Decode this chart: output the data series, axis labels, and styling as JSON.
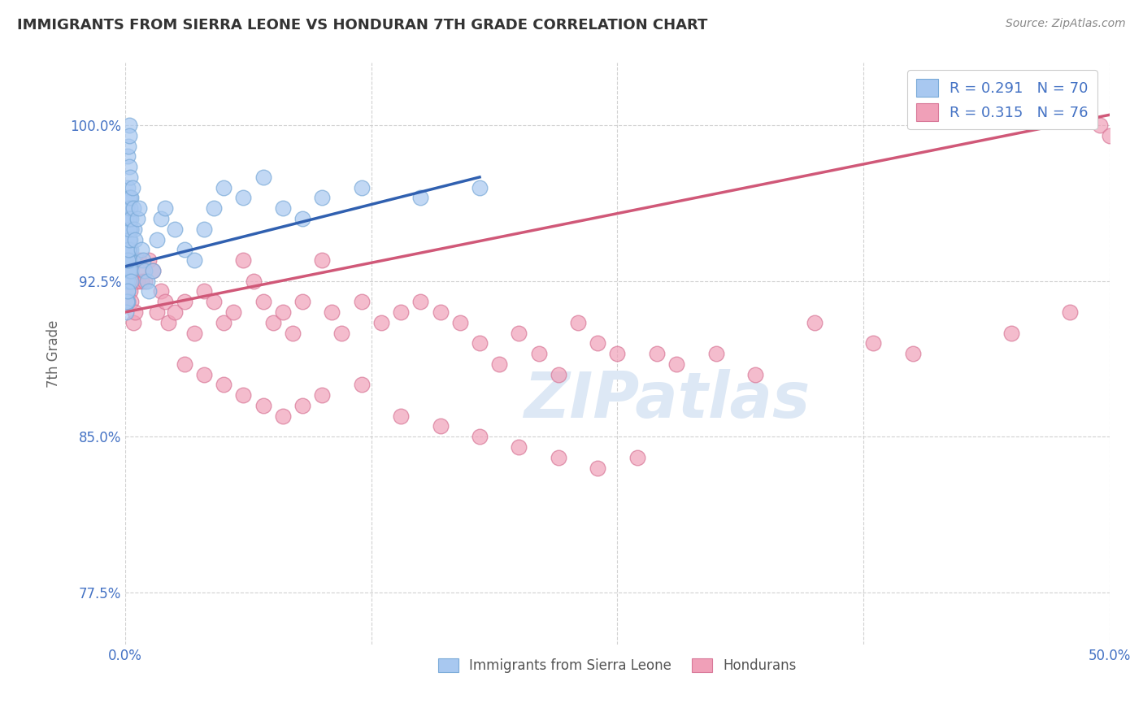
{
  "title": "IMMIGRANTS FROM SIERRA LEONE VS HONDURAN 7TH GRADE CORRELATION CHART",
  "source_text": "Source: ZipAtlas.com",
  "ylabel": "7th Grade",
  "xlim": [
    0.0,
    50.0
  ],
  "ylim": [
    75.0,
    103.0
  ],
  "yticks": [
    77.5,
    85.0,
    92.5,
    100.0
  ],
  "ytick_labels": [
    "77.5%",
    "85.0%",
    "92.5%",
    "100.0%"
  ],
  "xticks": [
    0.0,
    12.5,
    25.0,
    37.5,
    50.0
  ],
  "xtick_labels": [
    "0.0%",
    "",
    "",
    "",
    "50.0%"
  ],
  "legend_R_blue": "R = 0.291",
  "legend_N_blue": "N = 70",
  "legend_R_pink": "R = 0.315",
  "legend_N_pink": "N = 76",
  "legend_label_blue": "Immigrants from Sierra Leone",
  "legend_label_pink": "Hondurans",
  "blue_color": "#a8c8f0",
  "pink_color": "#f0a0b8",
  "blue_edge_color": "#7aaad8",
  "pink_edge_color": "#d87898",
  "blue_line_color": "#3060b0",
  "pink_line_color": "#d05878",
  "title_color": "#333333",
  "axis_label_color": "#666666",
  "tick_color": "#4472c4",
  "grid_color": "#cccccc",
  "watermark_color": "#dde8f5",
  "source_color": "#888888",
  "background_color": "#ffffff",
  "blue_scatter_x": [
    0.05,
    0.08,
    0.1,
    0.12,
    0.15,
    0.18,
    0.2,
    0.22,
    0.25,
    0.28,
    0.1,
    0.12,
    0.15,
    0.18,
    0.2,
    0.22,
    0.25,
    0.28,
    0.3,
    0.35,
    0.08,
    0.1,
    0.12,
    0.15,
    0.18,
    0.2,
    0.22,
    0.25,
    0.28,
    0.3,
    0.05,
    0.08,
    0.1,
    0.12,
    0.15,
    0.18,
    0.2,
    0.22,
    0.25,
    0.28,
    0.3,
    0.35,
    0.4,
    0.45,
    0.5,
    0.6,
    0.7,
    0.8,
    0.9,
    1.0,
    1.1,
    1.2,
    1.4,
    1.6,
    1.8,
    2.0,
    2.5,
    3.0,
    3.5,
    4.0,
    4.5,
    5.0,
    6.0,
    7.0,
    8.0,
    9.0,
    10.0,
    12.0,
    15.0,
    18.0
  ],
  "blue_scatter_y": [
    95.5,
    96.0,
    97.0,
    98.5,
    99.0,
    100.0,
    99.5,
    98.0,
    96.5,
    95.0,
    94.0,
    93.5,
    93.0,
    94.5,
    95.5,
    96.5,
    97.5,
    95.0,
    94.0,
    93.5,
    92.5,
    92.0,
    91.5,
    92.5,
    93.0,
    93.5,
    94.0,
    94.5,
    93.0,
    92.5,
    91.0,
    91.5,
    92.0,
    93.5,
    94.0,
    94.5,
    95.0,
    95.5,
    96.0,
    95.5,
    96.5,
    97.0,
    96.0,
    95.0,
    94.5,
    95.5,
    96.0,
    94.0,
    93.5,
    93.0,
    92.5,
    92.0,
    93.0,
    94.5,
    95.5,
    96.0,
    95.0,
    94.0,
    93.5,
    95.0,
    96.0,
    97.0,
    96.5,
    97.5,
    96.0,
    95.5,
    96.5,
    97.0,
    96.5,
    97.0
  ],
  "pink_scatter_x": [
    0.1,
    0.15,
    0.2,
    0.25,
    0.3,
    0.4,
    0.5,
    0.6,
    0.7,
    0.8,
    0.9,
    1.0,
    1.2,
    1.4,
    1.6,
    1.8,
    2.0,
    2.2,
    2.5,
    3.0,
    3.5,
    4.0,
    4.5,
    5.0,
    5.5,
    6.0,
    6.5,
    7.0,
    7.5,
    8.0,
    8.5,
    9.0,
    10.0,
    10.5,
    11.0,
    12.0,
    13.0,
    14.0,
    15.0,
    16.0,
    17.0,
    18.0,
    19.0,
    20.0,
    21.0,
    22.0,
    23.0,
    24.0,
    25.0,
    27.0,
    28.0,
    30.0,
    32.0,
    35.0,
    38.0,
    40.0,
    45.0,
    48.0,
    49.5,
    50.0,
    3.0,
    4.0,
    5.0,
    6.0,
    7.0,
    8.0,
    9.0,
    10.0,
    12.0,
    14.0,
    16.0,
    18.0,
    20.0,
    22.0,
    24.0,
    26.0
  ],
  "pink_scatter_y": [
    91.5,
    92.5,
    93.0,
    92.0,
    91.5,
    90.5,
    91.0,
    92.5,
    93.5,
    92.5,
    93.0,
    92.5,
    93.5,
    93.0,
    91.0,
    92.0,
    91.5,
    90.5,
    91.0,
    91.5,
    90.0,
    92.0,
    91.5,
    90.5,
    91.0,
    93.5,
    92.5,
    91.5,
    90.5,
    91.0,
    90.0,
    91.5,
    93.5,
    91.0,
    90.0,
    91.5,
    90.5,
    91.0,
    91.5,
    91.0,
    90.5,
    89.5,
    88.5,
    90.0,
    89.0,
    88.0,
    90.5,
    89.5,
    89.0,
    89.0,
    88.5,
    89.0,
    88.0,
    90.5,
    89.5,
    89.0,
    90.0,
    91.0,
    100.0,
    99.5,
    88.5,
    88.0,
    87.5,
    87.0,
    86.5,
    86.0,
    86.5,
    87.0,
    87.5,
    86.0,
    85.5,
    85.0,
    84.5,
    84.0,
    83.5,
    84.0
  ],
  "blue_trendline_x": [
    0.0,
    18.0
  ],
  "blue_trendline_y": [
    93.2,
    97.5
  ],
  "pink_trendline_x": [
    0.0,
    50.0
  ],
  "pink_trendline_y": [
    91.0,
    100.5
  ]
}
